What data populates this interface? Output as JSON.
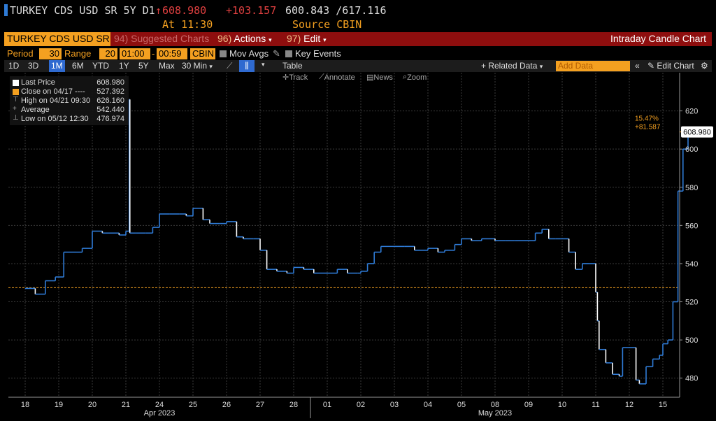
{
  "header": {
    "ticker_line": "TURKEY CDS USD SR 5Y D1",
    "arrow": "↑",
    "last_price": "608.980",
    "change": "+103.157",
    "bid_ask": "600.843 /617.116",
    "time": "At 11:30",
    "source": "Source CBIN"
  },
  "toolbar_red": {
    "ticker": "TURKEY CDS USD SR",
    "suggested_code": "94)",
    "suggested": "Suggested Charts",
    "actions_code": "96)",
    "actions": "Actions",
    "edit_code": "97)",
    "edit": "Edit",
    "chart_type": "Intraday Candle Chart"
  },
  "period_row": {
    "period_label": "Period",
    "period_value": "30",
    "range_label": "Range",
    "range_value": "20",
    "time_from": "01:00",
    "time_to": "00:59",
    "source": "CBIN",
    "mov_avgs": "Mov Avgs",
    "key_events": "Key Events"
  },
  "tools_row": {
    "ranges": [
      "1D",
      "3D",
      "1M",
      "6M",
      "YTD",
      "1Y",
      "5Y",
      "Max"
    ],
    "selected_range": "1M",
    "interval": "30 Min",
    "table": "Table",
    "related": "+ Related Data",
    "add_data": "Add Data",
    "edit_chart": "Edit Chart"
  },
  "annot_row": {
    "track": "Track",
    "annotate": "Annotate",
    "news": "News",
    "zoom": "Zoom"
  },
  "legend": {
    "items": [
      {
        "label": "Last Price",
        "value": "608.980",
        "color": "#ffffff"
      },
      {
        "label": "Close on 04/17 ----",
        "value": "527.392",
        "color": "#f4a020"
      },
      {
        "label": "High on 04/21 09:30",
        "value": "626.160",
        "color": ""
      },
      {
        "label": "Average",
        "value": "542.440",
        "color": ""
      },
      {
        "label": "Low on 05/12 12:30",
        "value": "476.974",
        "color": ""
      }
    ]
  },
  "colors": {
    "accent": "#f4a020",
    "red_bar": "#8e0e0e",
    "up": "#2f7bd6",
    "down": "#ffffff",
    "price_up": "#e04040"
  },
  "chart_data": {
    "type": "line",
    "title": "",
    "xlabel": "",
    "ylabel": "",
    "ylim": [
      470,
      640
    ],
    "y_ticks": [
      480,
      500,
      520,
      540,
      560,
      580,
      600,
      620
    ],
    "x_ticks": [
      "18",
      "19",
      "20",
      "21",
      "24",
      "25",
      "26",
      "27",
      "28",
      "01",
      "02",
      "03",
      "04",
      "05",
      "08",
      "09",
      "10",
      "11",
      "12",
      "15"
    ],
    "month_labels": [
      "Apr 2023",
      "May 2023"
    ],
    "reference_close": 527.392,
    "last_value": 608.98,
    "last_label": "608.980",
    "annotation_pct": "15.47%",
    "annotation_change": "+81.587",
    "series": [
      {
        "points": [
          [
            0.0,
            527
          ],
          [
            0.3,
            524
          ],
          [
            0.6,
            531
          ],
          [
            0.9,
            533
          ],
          [
            1.0,
            533
          ],
          [
            1.15,
            546
          ],
          [
            1.5,
            546
          ],
          [
            1.7,
            548
          ],
          [
            2.0,
            557
          ],
          [
            2.3,
            556
          ],
          [
            2.5,
            556
          ],
          [
            2.8,
            555
          ],
          [
            3.0,
            557
          ],
          [
            3.1,
            626
          ],
          [
            3.12,
            556
          ],
          [
            3.3,
            556
          ],
          [
            3.6,
            556
          ],
          [
            3.8,
            559
          ],
          [
            4.0,
            566
          ],
          [
            4.3,
            566
          ],
          [
            4.6,
            566
          ],
          [
            4.8,
            565
          ],
          [
            5.0,
            569
          ],
          [
            5.3,
            563
          ],
          [
            5.5,
            561
          ],
          [
            5.8,
            561
          ],
          [
            6.0,
            562
          ],
          [
            6.3,
            554
          ],
          [
            6.5,
            553
          ],
          [
            6.8,
            553
          ],
          [
            7.0,
            547
          ],
          [
            7.2,
            537
          ],
          [
            7.5,
            536
          ],
          [
            7.8,
            535
          ],
          [
            8.0,
            538
          ],
          [
            8.3,
            537
          ],
          [
            8.6,
            535
          ],
          [
            9.0,
            535
          ],
          [
            9.3,
            537
          ],
          [
            9.6,
            535
          ],
          [
            9.9,
            535
          ],
          [
            10.0,
            536
          ],
          [
            10.2,
            540
          ],
          [
            10.4,
            546
          ],
          [
            10.6,
            549
          ],
          [
            11.0,
            549
          ],
          [
            11.3,
            549
          ],
          [
            11.6,
            547
          ],
          [
            12.0,
            548
          ],
          [
            12.3,
            546
          ],
          [
            12.5,
            547
          ],
          [
            12.8,
            550
          ],
          [
            13.0,
            553
          ],
          [
            13.3,
            552
          ],
          [
            13.6,
            553
          ],
          [
            14.0,
            552
          ],
          [
            14.3,
            552
          ],
          [
            14.6,
            552
          ],
          [
            15.0,
            552
          ],
          [
            15.2,
            556
          ],
          [
            15.4,
            558
          ],
          [
            15.6,
            553
          ],
          [
            15.8,
            553
          ],
          [
            16.0,
            553
          ],
          [
            16.2,
            546
          ],
          [
            16.4,
            537
          ],
          [
            16.6,
            540
          ],
          [
            16.8,
            540
          ],
          [
            17.0,
            525
          ],
          [
            17.05,
            510
          ],
          [
            17.1,
            495
          ],
          [
            17.3,
            488
          ],
          [
            17.5,
            482
          ],
          [
            17.7,
            481
          ],
          [
            17.8,
            496
          ],
          [
            18.0,
            496
          ],
          [
            18.2,
            479
          ],
          [
            18.3,
            477
          ],
          [
            18.5,
            486
          ],
          [
            18.7,
            490
          ],
          [
            18.9,
            492
          ],
          [
            19.0,
            498
          ],
          [
            19.15,
            500
          ],
          [
            19.3,
            520
          ],
          [
            19.45,
            578
          ],
          [
            19.6,
            600
          ],
          [
            19.75,
            609
          ]
        ]
      }
    ]
  }
}
